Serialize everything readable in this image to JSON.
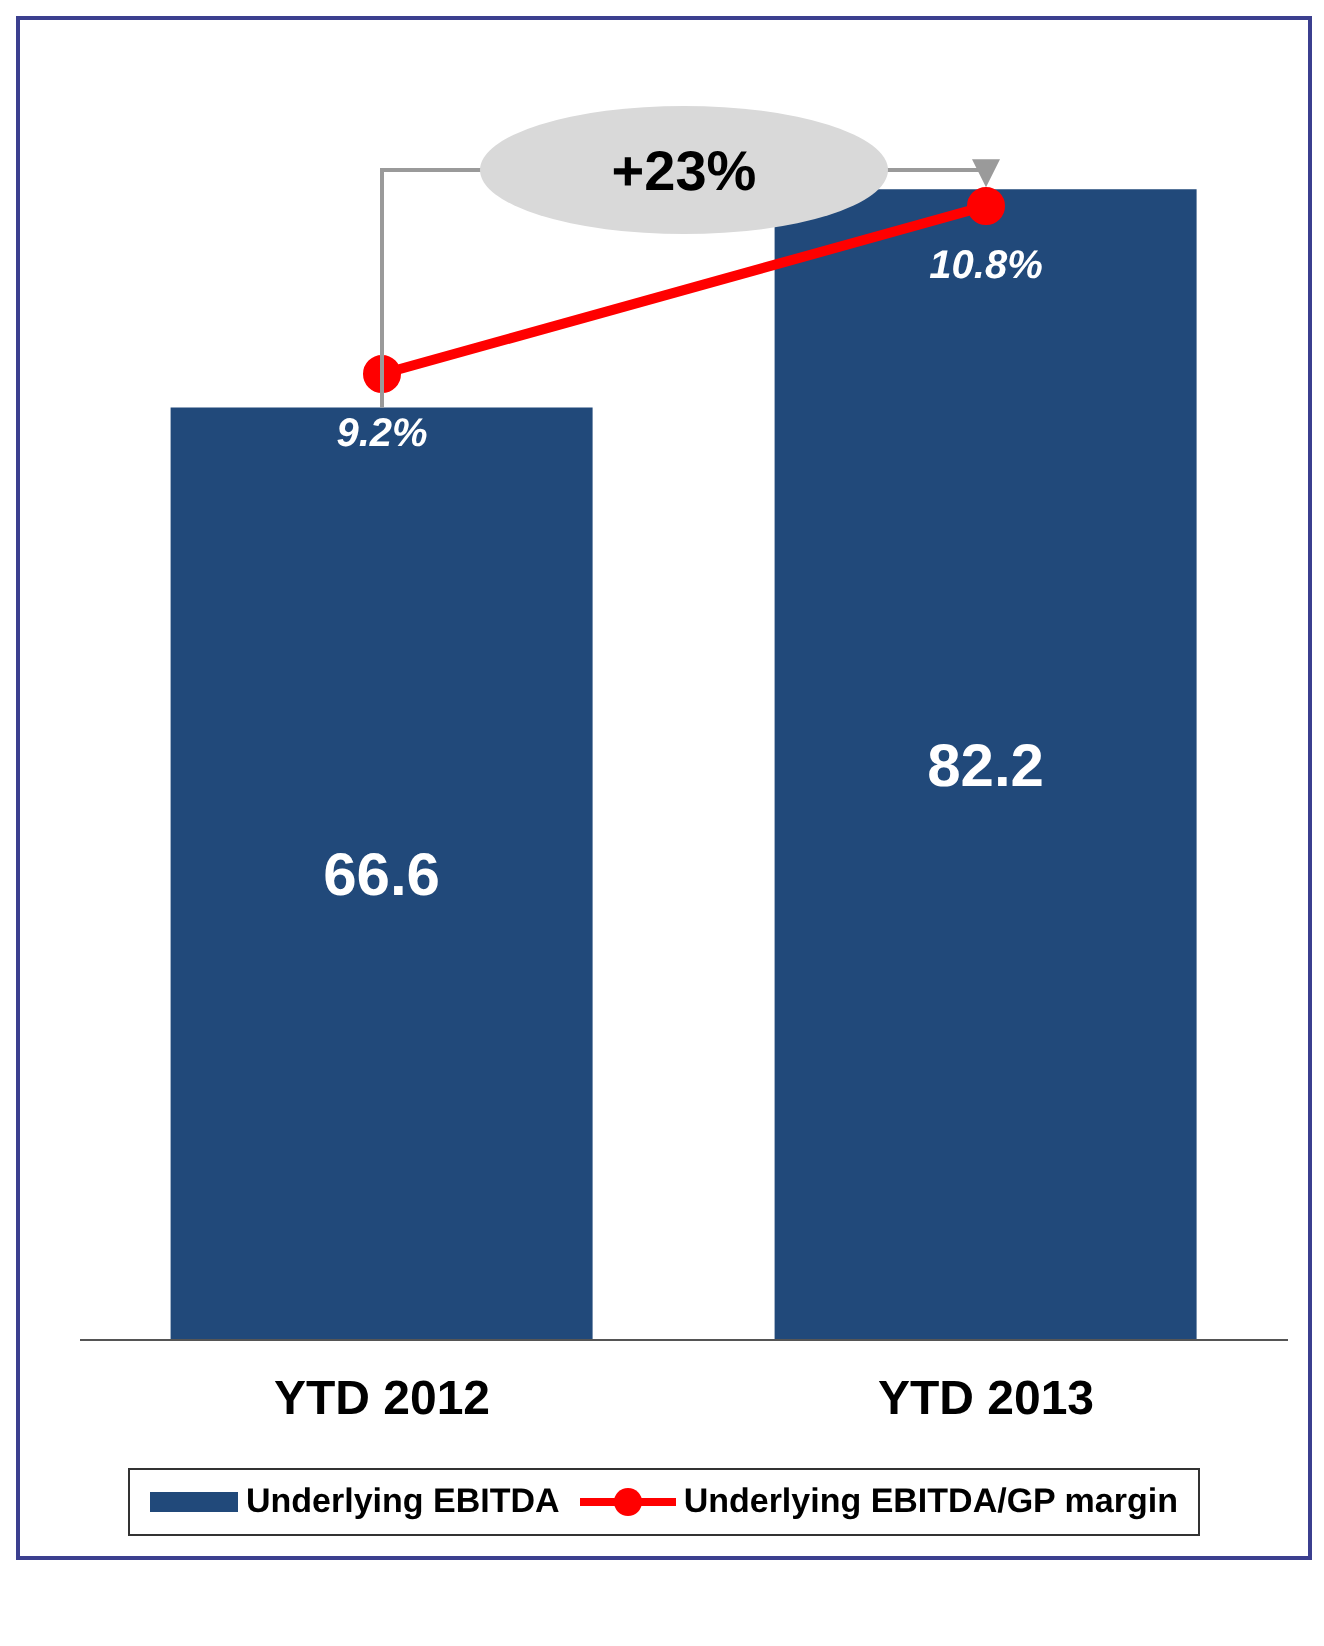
{
  "chart_data": {
    "type": "bar",
    "categories": [
      "YTD 2012",
      "YTD 2013"
    ],
    "series": [
      {
        "name": "Underlying EBITDA",
        "color": "#21497a",
        "values": [
          66.6,
          82.2
        ],
        "value_labels": [
          "66.6",
          "82.2"
        ]
      },
      {
        "name": "Underlying EBITDA/GP margin",
        "type": "line",
        "axis": "y2",
        "color": "#ff0000",
        "values": [
          9.2,
          10.8
        ],
        "value_labels": [
          "9.2%",
          "10.8%"
        ]
      }
    ],
    "tick_labels": "x",
    "marker": "circle",
    "legend": "bottom",
    "annotations": [
      "+23%"
    ]
  }
}
